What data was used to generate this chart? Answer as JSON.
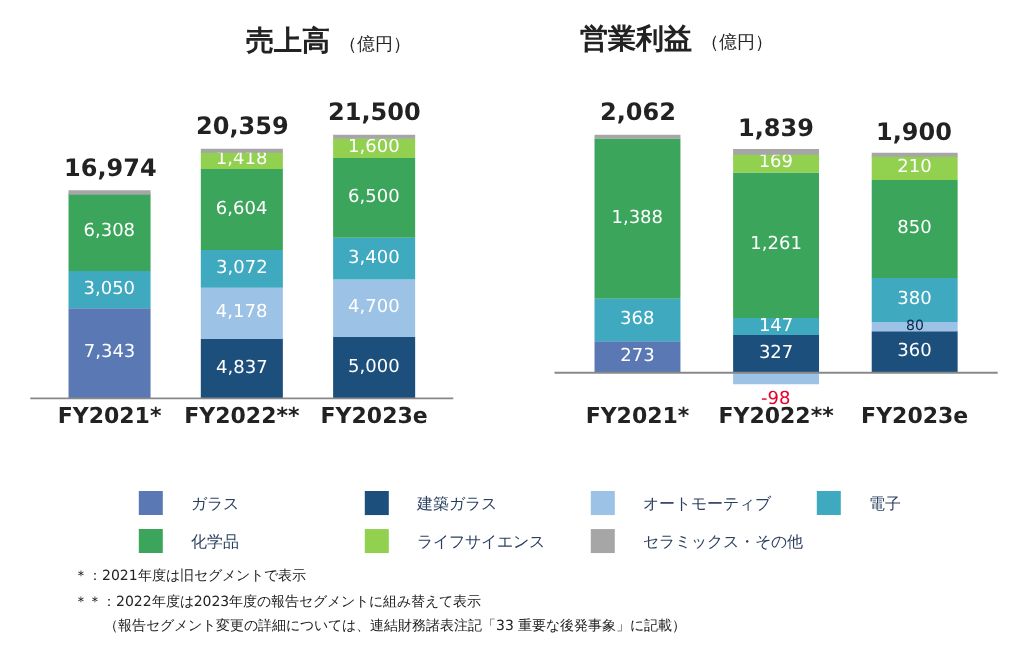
{
  "chart_data": [
    {
      "type": "bar",
      "title": "売上高",
      "subtitle": "（億円）",
      "stacked": true,
      "categories": [
        "FY2021*",
        "FY2022**",
        "FY2023e"
      ],
      "legend": "bottom",
      "totals": [
        "16,974",
        "20,359",
        "21,500"
      ],
      "series": [
        {
          "name": "ガラス",
          "color": "#5a78b4",
          "values": [
            7343,
            null,
            null
          ],
          "value_labels": [
            "7,343",
            null,
            null
          ]
        },
        {
          "name": "建築ガラス",
          "color": "#1d4f7c",
          "values": [
            null,
            4837,
            5000
          ],
          "value_labels": [
            null,
            "4,837",
            "5,000"
          ]
        },
        {
          "name": "オートモーティブ",
          "color": "#9cc2e5",
          "values": [
            null,
            4178,
            4700
          ],
          "value_labels": [
            null,
            "4,178",
            "4,700"
          ]
        },
        {
          "name": "電子",
          "color": "#3fa9bf",
          "values": [
            3050,
            3072,
            3400
          ],
          "value_labels": [
            "3,050",
            "3,072",
            "3,400"
          ]
        },
        {
          "name": "化学品",
          "color": "#3ba55c",
          "values": [
            6308,
            6604,
            6500
          ],
          "value_labels": [
            "6,308",
            "6,604",
            "6,500"
          ]
        },
        {
          "name": "ライフサイエンス",
          "color": "#92d050",
          "values": [
            null,
            1418,
            1600
          ],
          "value_labels": [
            null,
            "1,418",
            "1,600"
          ]
        },
        {
          "name": "セラミックス・その他",
          "color": "#a6a6a6",
          "values": [
            273,
            250,
            300
          ],
          "value_labels": [
            null,
            null,
            null
          ]
        }
      ],
      "annotations": [
        "＊：2021年度は旧セグメントで表示",
        "＊＊：2022年度は2023年度の報告セグメントに組み替えて表示",
        "（報告セグメント変更の詳細については、連結財務諸表注記「33 重要な後発事象」に記載）"
      ]
    },
    {
      "type": "bar",
      "title": "営業利益",
      "subtitle": "（億円）",
      "stacked": true,
      "categories": [
        "FY2021*",
        "FY2022**",
        "FY2023e"
      ],
      "totals": [
        "2,062",
        "1,839",
        "1,900"
      ],
      "series": [
        {
          "color": "#5a78b4",
          "values": [
            273,
            null,
            null
          ],
          "value_labels": [
            "273",
            null,
            null
          ]
        },
        {
          "color": "#1d4f7c",
          "values": [
            null,
            327,
            360
          ],
          "value_labels": [
            null,
            "327",
            "360"
          ]
        },
        {
          "color": "#9cc2e5",
          "values": [
            null,
            -98,
            80
          ],
          "value_labels": [
            null,
            "-98",
            "80"
          ]
        },
        {
          "color": "#3fa9bf",
          "values": [
            368,
            147,
            380
          ],
          "value_labels": [
            "368",
            "147",
            "380"
          ]
        },
        {
          "color": "#3ba55c",
          "values": [
            1388,
            1261,
            850
          ],
          "value_labels": [
            "1,388",
            "1,261",
            "850"
          ]
        },
        {
          "color": "#92d050",
          "values": [
            null,
            169,
            210
          ],
          "value_labels": [
            null,
            "169",
            "210"
          ]
        },
        {
          "color": "#a6a6a6",
          "values": [
            33,
            33,
            20
          ],
          "value_labels": [
            null,
            null,
            null
          ]
        }
      ]
    }
  ]
}
